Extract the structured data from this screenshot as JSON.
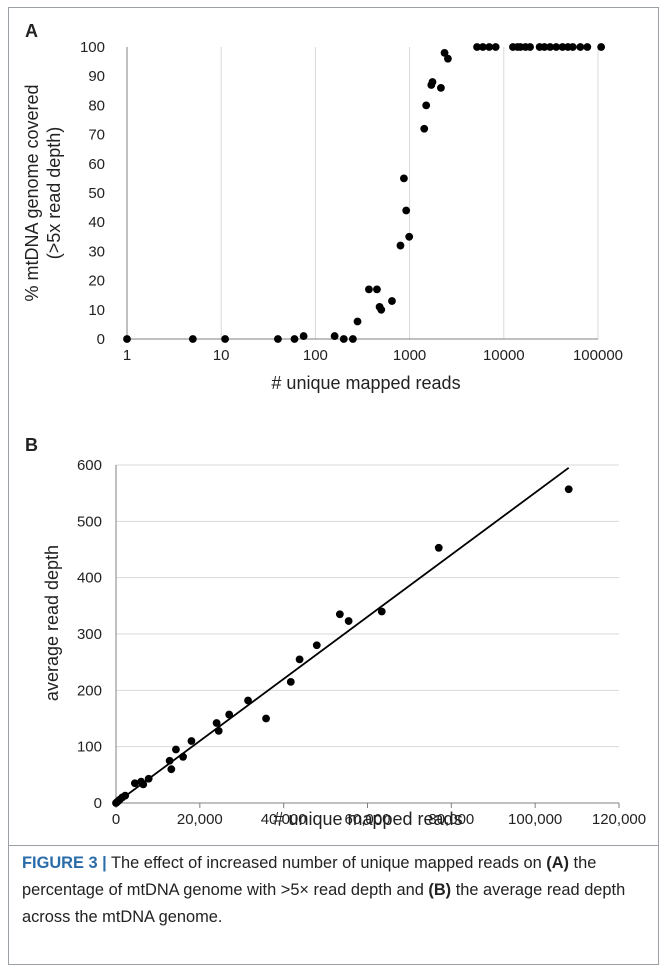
{
  "chart_data": [
    {
      "panel_label": "A",
      "type": "scatter",
      "xlabel": "# unique mapped reads",
      "ylabel": "% mtDNA genome covered\n(>5x read depth)",
      "x_scale": "log",
      "xlim": [
        1,
        100000
      ],
      "ylim": [
        0,
        100
      ],
      "x_ticks": [
        "1",
        "10",
        "100",
        "1000",
        "10000",
        "100000"
      ],
      "y_ticks": [
        "0",
        "10",
        "20",
        "30",
        "40",
        "50",
        "60",
        "70",
        "80",
        "90",
        "100"
      ],
      "grid": "vertical",
      "points": [
        [
          1,
          0
        ],
        [
          5,
          0
        ],
        [
          11,
          0
        ],
        [
          40,
          0
        ],
        [
          60,
          0
        ],
        [
          75,
          1
        ],
        [
          160,
          1
        ],
        [
          200,
          0
        ],
        [
          250,
          0
        ],
        [
          280,
          6
        ],
        [
          370,
          17
        ],
        [
          450,
          17
        ],
        [
          480,
          11
        ],
        [
          500,
          10
        ],
        [
          650,
          13
        ],
        [
          800,
          32
        ],
        [
          870,
          55
        ],
        [
          920,
          44
        ],
        [
          990,
          35
        ],
        [
          1430,
          72
        ],
        [
          1500,
          80
        ],
        [
          1700,
          87
        ],
        [
          1750,
          88
        ],
        [
          2150,
          86
        ],
        [
          2350,
          98
        ],
        [
          2550,
          96
        ],
        [
          5200,
          100
        ],
        [
          6000,
          100
        ],
        [
          7000,
          100
        ],
        [
          8200,
          100
        ],
        [
          12500,
          100
        ],
        [
          14000,
          100
        ],
        [
          15000,
          100
        ],
        [
          17000,
          100
        ],
        [
          19000,
          100
        ],
        [
          24000,
          100
        ],
        [
          27000,
          100
        ],
        [
          31000,
          100
        ],
        [
          36000,
          100
        ],
        [
          42000,
          100
        ],
        [
          48000,
          100
        ],
        [
          54000,
          100
        ],
        [
          65000,
          100
        ],
        [
          77000,
          100
        ],
        [
          108000,
          100
        ]
      ]
    },
    {
      "panel_label": "B",
      "type": "scatter",
      "xlabel": "# unique mapped reads",
      "ylabel": "average read depth",
      "xlim": [
        0,
        120000
      ],
      "ylim": [
        0,
        600
      ],
      "x_ticks": [
        "0",
        "20,000",
        "40,000",
        "60,000",
        "80,000",
        "100,000",
        "120,000"
      ],
      "y_ticks": [
        "0",
        "100",
        "200",
        "300",
        "400",
        "500",
        "600"
      ],
      "grid": "horizontal",
      "trendline": [
        [
          0,
          0
        ],
        [
          108000,
          595
        ]
      ],
      "points": [
        [
          0,
          0
        ],
        [
          300,
          2
        ],
        [
          600,
          4
        ],
        [
          900,
          6
        ],
        [
          1500,
          10
        ],
        [
          2200,
          13
        ],
        [
          4500,
          35
        ],
        [
          6000,
          38
        ],
        [
          6500,
          33
        ],
        [
          7800,
          43
        ],
        [
          12800,
          75
        ],
        [
          13200,
          60
        ],
        [
          14300,
          95
        ],
        [
          16000,
          82
        ],
        [
          18000,
          110
        ],
        [
          24000,
          142
        ],
        [
          24500,
          128
        ],
        [
          27000,
          157
        ],
        [
          31500,
          182
        ],
        [
          35800,
          150
        ],
        [
          41700,
          215
        ],
        [
          43800,
          255
        ],
        [
          47900,
          280
        ],
        [
          53400,
          335
        ],
        [
          55500,
          323
        ],
        [
          63400,
          340
        ],
        [
          77000,
          453
        ],
        [
          108000,
          557
        ]
      ]
    }
  ],
  "caption": {
    "label": "FIGURE 3 |",
    "text_1": " The effect of increased number of unique mapped reads on ",
    "bold_a": "(A)",
    "text_2": " the percentage of mtDNA genome with >5× read depth and ",
    "bold_b": "(B)",
    "text_3": " the average read depth across the mtDNA genome."
  },
  "colors": {
    "point": "#000000",
    "grid": "#d9d9d9",
    "axis": "#808080",
    "caption_label": "#2a6ca8"
  }
}
